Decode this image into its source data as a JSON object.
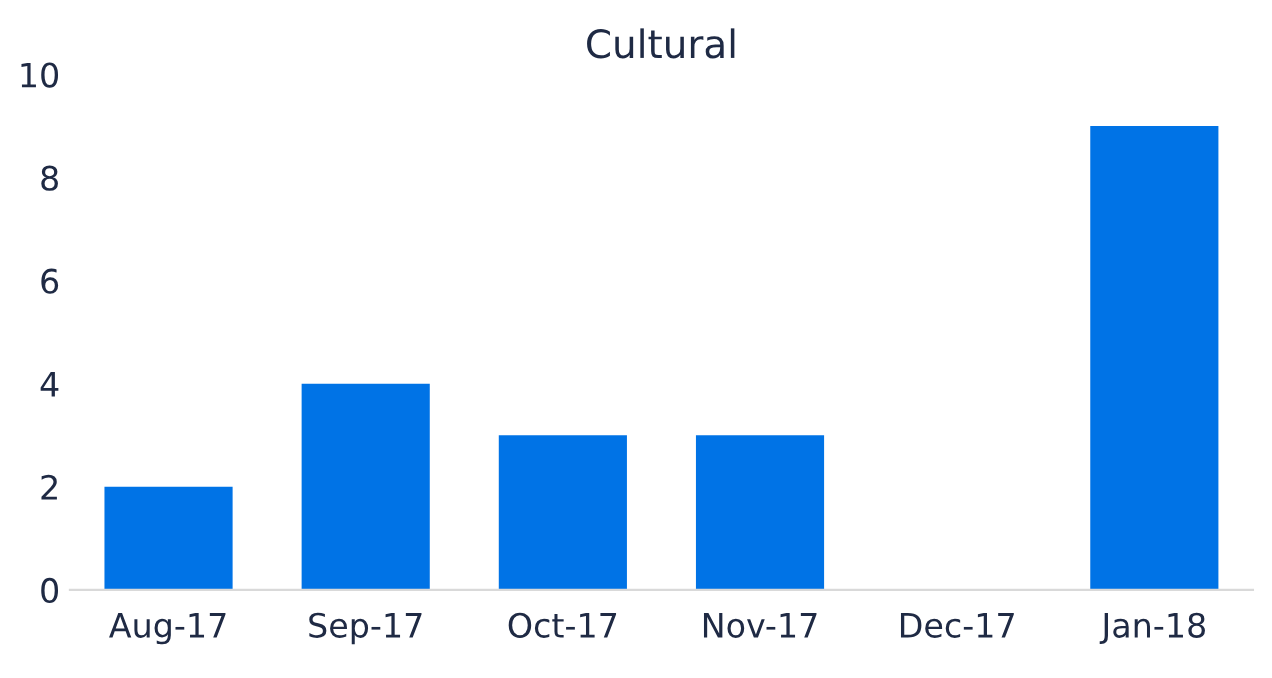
{
  "chart_data": {
    "type": "bar",
    "title": "Cultural",
    "categories": [
      "Aug-17",
      "Sep-17",
      "Oct-17",
      "Nov-17",
      "Dec-17",
      "Jan-18"
    ],
    "values": [
      2,
      4,
      3,
      3,
      0,
      9
    ],
    "color": "#0073e6",
    "ylim": [
      0,
      10
    ],
    "yticks": [
      0,
      2,
      4,
      6,
      8,
      10
    ],
    "grid": false,
    "legend": false
  }
}
